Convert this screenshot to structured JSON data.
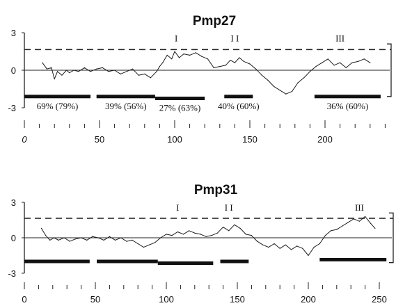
{
  "chart_data": [
    {
      "type": "line",
      "title": "Pmp27",
      "xlim": [
        0,
        240
      ],
      "ylim": [
        -3,
        3
      ],
      "x_ticks": [
        0,
        50,
        100,
        150,
        200
      ],
      "y_ticks": [
        3,
        0,
        -3
      ],
      "threshold": 1.65,
      "grid": false,
      "series": [
        {
          "x": [
            12,
            15,
            18,
            20,
            22,
            25,
            28,
            30,
            33,
            36,
            40,
            44,
            48,
            52,
            56,
            60,
            64,
            68,
            72,
            76,
            80,
            84,
            88,
            90,
            92,
            95,
            98,
            100,
            103,
            106,
            110,
            114,
            118,
            122,
            126,
            130,
            134,
            137,
            140,
            143,
            146,
            150,
            154,
            158,
            162,
            166,
            170,
            174,
            178,
            182,
            186,
            190,
            194,
            198,
            202,
            206,
            210,
            214,
            218,
            222,
            226,
            230
          ],
          "y": [
            0.6,
            0.1,
            0.2,
            -0.7,
            -0.1,
            -0.4,
            0.0,
            -0.2,
            0.0,
            -0.1,
            0.2,
            -0.1,
            0.1,
            0.2,
            -0.1,
            0.0,
            -0.3,
            -0.1,
            0.1,
            -0.4,
            -0.3,
            -0.6,
            -0.1,
            0.3,
            0.6,
            1.2,
            0.9,
            1.5,
            1.0,
            1.3,
            1.2,
            1.4,
            1.1,
            0.9,
            0.2,
            0.3,
            0.4,
            0.8,
            0.6,
            1.0,
            0.7,
            0.5,
            0.1,
            -0.4,
            -0.8,
            -1.3,
            -1.6,
            -1.9,
            -1.7,
            -1.0,
            -0.6,
            -0.1,
            0.3,
            0.6,
            0.9,
            0.4,
            0.6,
            0.2,
            0.6,
            0.7,
            0.9,
            0.6
          ]
        }
      ],
      "annotations": [
        {
          "label": "I",
          "x": 101,
          "y": 2.3
        },
        {
          "label": "I I",
          "x": 140,
          "y": 2.3
        },
        {
          "label": "III",
          "x": 210,
          "y": 2.3
        }
      ],
      "segments": [
        {
          "start": 0,
          "end": 44,
          "y": -2.1,
          "label": "69% (79%)"
        },
        {
          "start": 48,
          "end": 87,
          "y": -2.1,
          "label": "39% (56%)"
        },
        {
          "start": 87,
          "end": 120,
          "y": -2.25,
          "label": "27% (63%)"
        },
        {
          "start": 133,
          "end": 152,
          "y": -2.1,
          "label": "40% (60%)"
        },
        {
          "start": 193,
          "end": 237,
          "y": -2.1,
          "label": "36% (60%)"
        }
      ]
    },
    {
      "type": "line",
      "title": "Pmp31",
      "xlim": [
        0,
        255
      ],
      "ylim": [
        -3,
        3
      ],
      "x_ticks": [
        0,
        50,
        100,
        150,
        200,
        250
      ],
      "y_ticks": [
        3,
        0,
        -3
      ],
      "threshold": 1.65,
      "grid": false,
      "series": [
        {
          "x": [
            12,
            15,
            18,
            21,
            24,
            28,
            32,
            36,
            40,
            44,
            48,
            52,
            56,
            60,
            64,
            68,
            72,
            76,
            80,
            84,
            88,
            92,
            96,
            100,
            104,
            108,
            112,
            116,
            120,
            124,
            128,
            132,
            136,
            140,
            144,
            148,
            152,
            156,
            160,
            164,
            168,
            172,
            176,
            180,
            184,
            188,
            192,
            196,
            200,
            204,
            208,
            212,
            216,
            220,
            224,
            228,
            232,
            236,
            240,
            244,
            247
          ],
          "y": [
            0.8,
            0.2,
            -0.2,
            0.0,
            -0.2,
            0.0,
            -0.3,
            -0.1,
            0.0,
            -0.2,
            0.1,
            0.0,
            -0.2,
            0.1,
            -0.2,
            0.0,
            -0.3,
            -0.2,
            -0.5,
            -0.8,
            -0.6,
            -0.4,
            0.0,
            0.3,
            0.2,
            0.5,
            0.3,
            0.6,
            0.4,
            0.3,
            0.1,
            0.2,
            0.4,
            0.9,
            0.6,
            1.1,
            0.8,
            0.3,
            0.2,
            -0.3,
            -0.6,
            -0.8,
            -0.5,
            -0.9,
            -0.6,
            -1.0,
            -0.7,
            -0.9,
            -1.5,
            -0.8,
            -0.5,
            0.2,
            0.6,
            0.7,
            1.0,
            1.3,
            1.6,
            1.4,
            1.8,
            1.2,
            0.8
          ]
        }
      ],
      "annotations": [
        {
          "label": "I",
          "x": 108,
          "y": 2.3
        },
        {
          "label": "I I",
          "x": 144,
          "y": 2.3
        },
        {
          "label": "III",
          "x": 236,
          "y": 2.3
        }
      ],
      "segments": [
        {
          "start": 0,
          "end": 46,
          "y": -2.0,
          "label": ""
        },
        {
          "start": 51,
          "end": 94,
          "y": -2.0,
          "label": ""
        },
        {
          "start": 94,
          "end": 133,
          "y": -2.15,
          "label": ""
        },
        {
          "start": 138,
          "end": 158,
          "y": -2.0,
          "label": ""
        },
        {
          "start": 208,
          "end": 255,
          "y": -1.85,
          "label": ""
        }
      ]
    }
  ]
}
